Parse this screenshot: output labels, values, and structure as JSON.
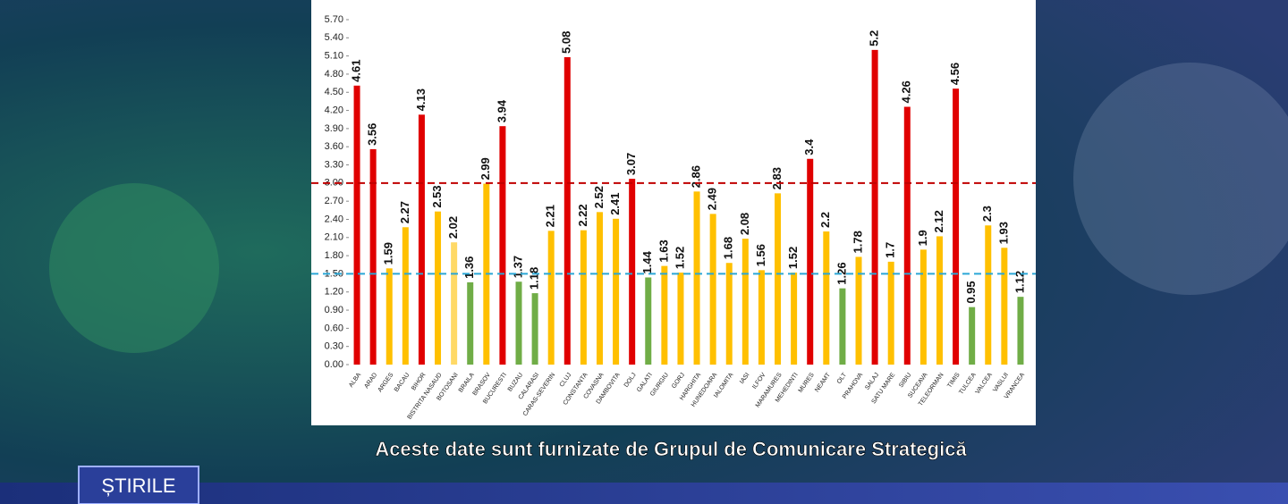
{
  "chart_data": {
    "type": "bar",
    "categories": [
      "ALBA",
      "ARAD",
      "ARGES",
      "BACAU",
      "BIHOR",
      "BISTRITA NASAUD",
      "BOTOSANI",
      "BRAILA",
      "BRASOV",
      "BUCURESTI",
      "BUZAU",
      "CALARASI",
      "CARAS-SEVERIN",
      "CLUJ",
      "CONSTANTA",
      "COVASNA",
      "DAMBOVITA",
      "DOLJ",
      "GALATI",
      "GIURGIU",
      "GORJ",
      "HARGHITA",
      "HUNEDOARA",
      "IALOMITA",
      "IASI",
      "ILFOV",
      "MARAMURES",
      "MEHEDINTI",
      "MURES",
      "NEAMT",
      "OLT",
      "PRAHOVA",
      "SALAJ",
      "SATU MARE",
      "SIBIU",
      "SUCEAVA",
      "TELEORMAN",
      "TIMIS",
      "TULCEA",
      "VALCEA",
      "VASLUI",
      "VRANCEA"
    ],
    "values": [
      4.61,
      3.56,
      1.59,
      2.27,
      4.13,
      2.53,
      2.02,
      1.36,
      2.99,
      3.94,
      1.37,
      1.18,
      2.21,
      5.08,
      2.22,
      2.52,
      2.41,
      3.07,
      1.44,
      1.63,
      1.52,
      2.86,
      2.49,
      1.68,
      2.08,
      1.56,
      2.83,
      1.52,
      3.4,
      2.2,
      1.26,
      1.78,
      5.2,
      1.7,
      4.26,
      1.9,
      2.12,
      4.56,
      0.95,
      2.3,
      1.93,
      1.12
    ],
    "colors": [
      "#e00000",
      "#e00000",
      "#ffc000",
      "#ffc000",
      "#e00000",
      "#ffc000",
      "#ffd966",
      "#70ad47",
      "#ffc000",
      "#e00000",
      "#70ad47",
      "#70ad47",
      "#ffc000",
      "#e00000",
      "#ffc000",
      "#ffc000",
      "#ffc000",
      "#e00000",
      "#70ad47",
      "#ffc000",
      "#ffc000",
      "#ffc000",
      "#ffc000",
      "#ffc000",
      "#ffc000",
      "#ffc000",
      "#ffc000",
      "#ffc000",
      "#e00000",
      "#ffc000",
      "#70ad47",
      "#ffc000",
      "#e00000",
      "#ffc000",
      "#e00000",
      "#ffc000",
      "#ffc000",
      "#e00000",
      "#70ad47",
      "#ffc000",
      "#ffc000",
      "#70ad47"
    ],
    "ylim": [
      0,
      5.7
    ],
    "yticks": [
      {
        "value": 0,
        "label": "0.00"
      },
      {
        "value": 0.3,
        "label": "0.30"
      },
      {
        "value": 0.6,
        "label": "0.60"
      },
      {
        "value": 0.9,
        "label": "0.90"
      },
      {
        "value": 1.2,
        "label": "1.20"
      },
      {
        "value": 1.5,
        "label": "1.50"
      },
      {
        "value": 1.8,
        "label": "1.80"
      },
      {
        "value": 2.1,
        "label": "2.10"
      },
      {
        "value": 2.4,
        "label": "2.40"
      },
      {
        "value": 2.7,
        "label": "2.70"
      },
      {
        "value": 3,
        "label": "3.00"
      },
      {
        "value": 3.3,
        "label": "3.30"
      },
      {
        "value": 3.6,
        "label": "3.60"
      },
      {
        "value": 3.9,
        "label": "3.90"
      },
      {
        "value": 4.2,
        "label": "4.20"
      },
      {
        "value": 4.5,
        "label": "4.50"
      },
      {
        "value": 4.8,
        "label": "4.80"
      },
      {
        "value": 5.1,
        "label": "5.10"
      },
      {
        "value": 5.4,
        "label": "5.40"
      },
      {
        "value": 5.7,
        "label": "5.70"
      }
    ],
    "reference_lines": [
      {
        "value": 3,
        "color": "#c00000"
      },
      {
        "value": 1.5,
        "color": "#2aa7d6"
      }
    ]
  },
  "caption": "Aceste date sunt furnizate de Grupul de Comunicare Strategică",
  "logo": "ȘTIRILE"
}
